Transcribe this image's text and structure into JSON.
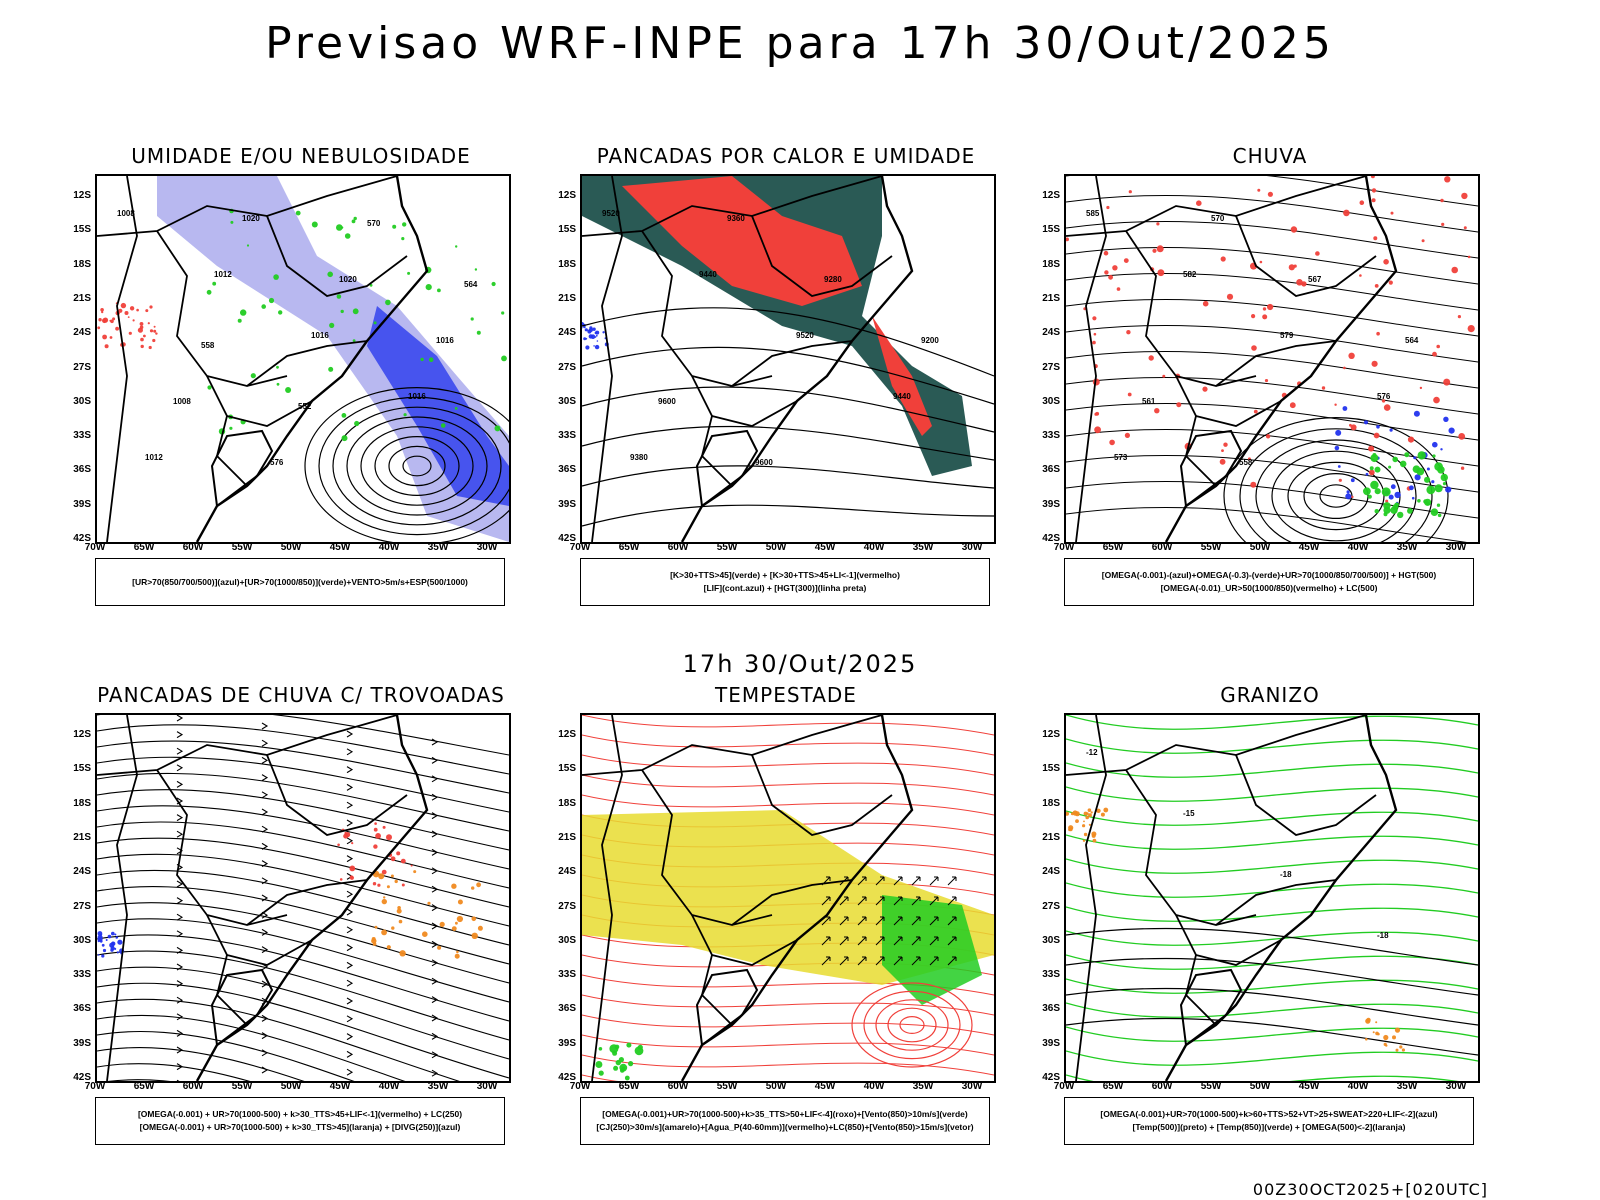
{
  "title": "Previsao WRF-INPE  para 17h 30/Out/2025",
  "mid_title": "17h 30/Out/2025",
  "footer": "00Z30OCT2025+[020UTC]",
  "lat_ticks": [
    "12S",
    "15S",
    "18S",
    "21S",
    "24S",
    "27S",
    "30S",
    "33S",
    "36S",
    "39S",
    "42S"
  ],
  "lon_ticks": [
    "70W",
    "65W",
    "60W",
    "55W",
    "50W",
    "45W",
    "40W",
    "35W",
    "30W"
  ],
  "colors": {
    "red": "#f0403a",
    "green": "#22cc22",
    "blue": "#2233ee",
    "lightblue": "#b8b8f0",
    "teal": "#2a5a55",
    "yellow": "#e8dc30",
    "orange": "#f08a20",
    "black": "#000000"
  },
  "panels": [
    {
      "title": "UMIDADE E/OU NEBULOSIDADE",
      "legend": [
        "[UR>70(850/700/500)](azul)+[UR>70(1000/850)](verde)+VENTO>5m/s+ESP(500/1000)"
      ],
      "contour_labels": [
        "1008",
        "1012",
        "1016",
        "1016",
        "1012",
        "1020",
        "1020",
        "1016",
        "1008",
        "576",
        "570",
        "564",
        "558",
        "552"
      ]
    },
    {
      "title": "PANCADAS POR CALOR E UMIDADE",
      "legend": [
        "[K>30+TTS>45](verde) + [K>30+TTS>45+LI<-1](vermelho)",
        "[LIF](cont.azul) + [HGT(300)](linha preta)"
      ],
      "contour_labels": [
        "9520",
        "9440",
        "9520",
        "9440",
        "9380",
        "9360",
        "9280",
        "9200",
        "9600",
        "9600"
      ]
    },
    {
      "title": "CHUVA",
      "legend": [
        "[OMEGA(-0.001)-(azul)+OMEGA(-0.3)-(verde)+UR>70(1000/850/700/500)] + HGT(500)",
        "[OMEGA(-0.01)_UR>50(1000/850)(vermelho) + LC(500)"
      ],
      "contour_labels": [
        "585",
        "582",
        "579",
        "576",
        "573",
        "570",
        "567",
        "564",
        "561",
        "558"
      ]
    },
    {
      "title": "PANCADAS DE CHUVA C/ TROVOADAS",
      "legend": [
        "[OMEGA(-0.001) + UR>70(1000-500) + k>30_TTS>45+LIF<-1](vermelho) + LC(250)",
        "[OMEGA(-0.001) + UR>70(1000-500) + k>30_TTS>45](laranja) + [DIVG(250)](azul)"
      ],
      "contour_labels": []
    },
    {
      "title": "TEMPESTADE",
      "legend": [
        "[OMEGA(-0.001)+UR>70(1000-500)+k>35_TTS>50+LIF<-4](roxo)+[Vento(850)>10m/s](verde)",
        "[CJ(250)>30m/s](amarelo)+[Agua_P(40-60mm)](vermelho)+LC(850)+[Vento(850)>15m/s](vetor)"
      ],
      "contour_labels": []
    },
    {
      "title": "GRANIZO",
      "legend": [
        "[OMEGA(-0.001)+UR>70(1000-500)+k>60+TTS>52+VT>25+SWEAT>220+LIF<-2](azul)",
        "[Temp(500)](preto) + [Temp(850)](verde) + [OMEGA(500)<-2](laranja)"
      ],
      "contour_labels": [
        "-12",
        "-15",
        "-18",
        "-18"
      ]
    }
  ]
}
